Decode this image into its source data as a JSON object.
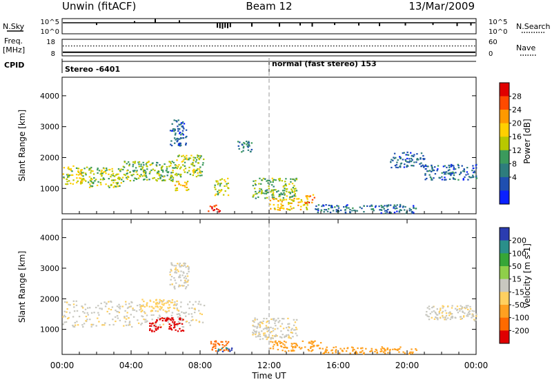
{
  "header": {
    "station": "Unwin (fitACF)",
    "beam": "Beam 12",
    "date": "13/Mar/2009"
  },
  "strip_sky": {
    "left_label": "N.Sky",
    "ticks_left": [
      "10^5",
      "10^0"
    ],
    "ticks_right": [
      "10^5",
      "10^0"
    ],
    "right_label": "N.Search",
    "noise_drops": [
      {
        "t": 9.0,
        "d": 0.45
      },
      {
        "t": 9.15,
        "d": 0.5
      },
      {
        "t": 9.3,
        "d": 0.55
      },
      {
        "t": 9.45,
        "d": 0.45
      },
      {
        "t": 9.6,
        "d": 0.5
      },
      {
        "t": 9.75,
        "d": 0.4
      },
      {
        "t": 2.0,
        "d": 0.2
      },
      {
        "t": 11.0,
        "d": 0.35
      },
      {
        "t": 12.6,
        "d": 0.35
      },
      {
        "t": 13.8,
        "d": 0.25
      },
      {
        "t": 14.5,
        "d": 0.35
      },
      {
        "t": 15.8,
        "d": 0.2
      },
      {
        "t": 17.2,
        "d": 0.25
      },
      {
        "t": 18.4,
        "d": 0.3
      },
      {
        "t": 19.9,
        "d": 0.25
      },
      {
        "t": 21.5,
        "d": 0.2
      },
      {
        "t": 22.9,
        "d": 0.3
      },
      {
        "t": 23.7,
        "d": 0.25
      }
    ],
    "noise_spikes": [
      {
        "t": 5.4,
        "d": 0.45
      },
      {
        "t": 6.8,
        "d": 0.3
      },
      {
        "t": 4.2,
        "d": 0.2
      }
    ]
  },
  "strip_freq": {
    "left_label_line1": "Freq.",
    "left_label_line2": "[MHz]",
    "ticks_left": [
      "18",
      "8"
    ],
    "ticks_right": [
      "60",
      "0"
    ],
    "right_label": "Nave",
    "freq_frac": 0.22,
    "nave_frac": 0.6
  },
  "cpid": {
    "label": "CPID",
    "segments": [
      {
        "start": 0.0,
        "text": "Stereo -6401"
      },
      {
        "start": 12.0,
        "text": "normal (fast stereo) 153"
      }
    ]
  },
  "panels": [
    {
      "id": "power",
      "ylabel": "Slant Range [km]",
      "cbar_label": "Power [dB]",
      "cbar_ticks": [
        "28",
        "24",
        "20",
        "16",
        "12",
        "8",
        "4"
      ],
      "cbar_colors": [
        "#e00000",
        "#ff4a00",
        "#ff9900",
        "#ffd000",
        "#b8c800",
        "#3b9a5c",
        "#2e7d7d",
        "#1f4fb0",
        "#0a20ff"
      ]
    },
    {
      "id": "velocity",
      "ylabel": "Slant Range [km]",
      "cbar_label": "Velocity [m s-1]",
      "cbar_ticks": [
        "200",
        "100",
        "50",
        "15",
        "-15",
        "-50",
        "-100",
        "-200"
      ],
      "cbar_colors": [
        "#2b3cb0",
        "#2a8f8a",
        "#36a637",
        "#8fcf4a",
        "#c8c8c0",
        "#ffd060",
        "#ffa020",
        "#ff6a00",
        "#e00000"
      ]
    }
  ],
  "axes": {
    "y_ticks": [
      1000,
      2000,
      3000,
      4000
    ],
    "y_range": [
      180,
      4600
    ],
    "x_range": [
      0,
      24
    ],
    "x_tick_labels": [
      "00:00",
      "04:00",
      "08:00",
      "12:00",
      "16:00",
      "20:00",
      "00:00"
    ],
    "xlabel": "Time UT"
  },
  "chart_data": {
    "type": "heatmap",
    "title": "Unwin (fitACF) Beam 12 13/Mar/2009",
    "xlabel": "Time UT",
    "ylabel": "Slant Range [km]",
    "xlim": [
      0,
      24
    ],
    "ylim": [
      180,
      4600
    ],
    "grid": false,
    "power_bands": [
      {
        "t0": 0.0,
        "t1": 1.5,
        "r_lo": 1150,
        "r_hi": 1750,
        "power": 18
      },
      {
        "t0": 1.5,
        "t1": 3.5,
        "r_lo": 1050,
        "r_hi": 1700,
        "power": 16
      },
      {
        "t0": 3.5,
        "t1": 6.5,
        "r_lo": 1250,
        "r_hi": 1900,
        "power": 14
      },
      {
        "t0": 6.5,
        "t1": 8.2,
        "r_lo": 1400,
        "r_hi": 2100,
        "power": 16
      },
      {
        "t0": 6.2,
        "t1": 7.2,
        "r_lo": 2400,
        "r_hi": 3250,
        "power": 6
      },
      {
        "t0": 6.5,
        "t1": 7.4,
        "r_lo": 950,
        "r_hi": 1250,
        "power": 20
      },
      {
        "t0": 8.8,
        "t1": 9.6,
        "r_lo": 800,
        "r_hi": 1350,
        "power": 16
      },
      {
        "t0": 8.4,
        "t1": 9.2,
        "r_lo": 260,
        "r_hi": 480,
        "power": 28
      },
      {
        "t0": 10.0,
        "t1": 11.0,
        "r_lo": 2200,
        "r_hi": 2550,
        "power": 8
      },
      {
        "t0": 11.0,
        "t1": 13.6,
        "r_lo": 700,
        "r_hi": 1350,
        "power": 14
      },
      {
        "t0": 12.0,
        "t1": 14.2,
        "r_lo": 320,
        "r_hi": 700,
        "power": 20
      },
      {
        "t0": 14.0,
        "t1": 14.6,
        "r_lo": 500,
        "r_hi": 850,
        "power": 26
      },
      {
        "t0": 14.6,
        "t1": 20.5,
        "r_lo": 220,
        "r_hi": 500,
        "power": 6
      },
      {
        "t0": 19.0,
        "t1": 21.0,
        "r_lo": 1700,
        "r_hi": 2200,
        "power": 6
      },
      {
        "t0": 21.0,
        "t1": 24.0,
        "r_lo": 1300,
        "r_hi": 1800,
        "power": 6
      }
    ],
    "velocity_bands": [
      {
        "t0": 0.0,
        "t1": 8.2,
        "r_lo": 1100,
        "r_hi": 1950,
        "velocity": -10
      },
      {
        "t0": 4.5,
        "t1": 6.5,
        "r_lo": 1600,
        "r_hi": 2000,
        "velocity": -40
      },
      {
        "t0": 6.2,
        "t1": 7.3,
        "r_lo": 2300,
        "r_hi": 3200,
        "velocity": -10
      },
      {
        "t0": 5.0,
        "t1": 7.0,
        "r_lo": 950,
        "r_hi": 1400,
        "velocity": -210
      },
      {
        "t0": 8.4,
        "t1": 9.6,
        "r_lo": 300,
        "r_hi": 650,
        "velocity": -120
      },
      {
        "t0": 9.0,
        "t1": 9.8,
        "r_lo": 280,
        "r_hi": 420,
        "velocity": 200
      },
      {
        "t0": 11.0,
        "t1": 13.6,
        "r_lo": 700,
        "r_hi": 1400,
        "velocity": -10
      },
      {
        "t0": 12.0,
        "t1": 15.0,
        "r_lo": 300,
        "r_hi": 650,
        "velocity": -80
      },
      {
        "t0": 15.0,
        "t1": 20.5,
        "r_lo": 220,
        "r_hi": 450,
        "velocity": -60
      },
      {
        "t0": 21.0,
        "t1": 24.0,
        "r_lo": 1300,
        "r_hi": 1800,
        "velocity": -10
      }
    ]
  }
}
